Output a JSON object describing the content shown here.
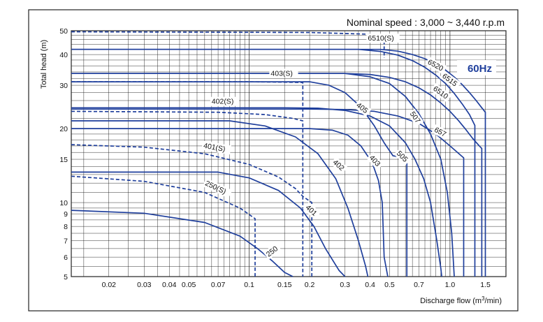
{
  "chart_data": {
    "type": "line",
    "title": "Nominal speed : 3,000 ~ 3,440 r.p.m",
    "badge": "60Hz",
    "xlabel_prefix": "Discharge flow (m",
    "xlabel_sup": "3",
    "xlabel_suffix": "/min)",
    "ylabel": "Total head (m)",
    "x_scale": "log",
    "y_scale": "log",
    "xlim": [
      0.013,
      1.9
    ],
    "ylim": [
      5,
      50
    ],
    "x_ticks": [
      0.02,
      0.03,
      0.04,
      0.05,
      0.07,
      0.1,
      0.15,
      0.2,
      0.3,
      0.4,
      0.5,
      0.7,
      1.0,
      1.5
    ],
    "x_tick_labels": [
      "0.02",
      "0.03",
      "0.04",
      "0.05",
      "0.07",
      "0.1",
      "0.15",
      "0.2",
      "0.3",
      "0.4",
      "0.5",
      "0.7",
      "1.0",
      "1.5"
    ],
    "y_ticks": [
      5,
      6,
      7,
      8,
      9,
      10,
      15,
      20,
      30,
      40,
      50
    ],
    "y_tick_labels": [
      "5",
      "6",
      "7",
      "8",
      "9",
      "10",
      "15",
      "20",
      "30",
      "40",
      "50"
    ],
    "grid": true,
    "series": [
      {
        "name": "250",
        "style": "solid",
        "x": [
          0.013,
          0.03,
          0.06,
          0.09,
          0.11,
          0.13,
          0.15,
          0.165
        ],
        "y": [
          9.3,
          9.05,
          8.3,
          7.3,
          6.5,
          5.8,
          5.2,
          5.0
        ],
        "label_at": [
          0.125,
          6.0
        ],
        "label_angle": -38
      },
      {
        "name": "250(S)",
        "style": "dashed",
        "x": [
          0.013,
          0.03,
          0.06,
          0.09,
          0.107,
          0.107
        ],
        "y": [
          12.8,
          12.2,
          11.0,
          9.5,
          8.6,
          5.0
        ],
        "label_at": [
          0.06,
          11.8
        ],
        "label_angle": 25
      },
      {
        "name": "401",
        "style": "solid",
        "x": [
          0.013,
          0.07,
          0.1,
          0.14,
          0.18,
          0.21,
          0.24,
          0.28,
          0.3
        ],
        "y": [
          13.3,
          13.3,
          12.6,
          11.2,
          9.5,
          8.0,
          6.5,
          5.3,
          5.0
        ],
        "label_at": [
          0.19,
          9.5
        ],
        "label_angle": 42
      },
      {
        "name": "401(S)",
        "style": "dashed",
        "x": [
          0.013,
          0.03,
          0.06,
          0.1,
          0.14,
          0.17,
          0.185,
          0.205,
          0.205
        ],
        "y": [
          17.2,
          16.8,
          15.8,
          14.3,
          12.7,
          11.4,
          10.6,
          10.0,
          5.0
        ],
        "label_at": [
          0.059,
          16.7
        ],
        "label_angle": 10
      },
      {
        "name": "402",
        "style": "solid",
        "x": [
          0.013,
          0.08,
          0.12,
          0.17,
          0.22,
          0.27,
          0.31,
          0.35,
          0.38,
          0.39
        ],
        "y": [
          21.5,
          21.5,
          20.5,
          18.5,
          15.8,
          12.5,
          9.5,
          7.0,
          5.5,
          5.0
        ],
        "label_at": [
          0.26,
          14.5
        ],
        "label_angle": 42
      },
      {
        "name": "402(S)",
        "style": "dashed",
        "x": [
          0.013,
          0.07,
          0.12,
          0.165,
          0.185,
          0.185
        ],
        "y": [
          23.5,
          23.3,
          22.8,
          22.0,
          21.5,
          5.0
        ],
        "label_at": [
          0.065,
          25.2
        ],
        "label_angle": 0
      },
      {
        "name": "403",
        "style": "solid",
        "x": [
          0.013,
          0.2,
          0.26,
          0.31,
          0.36,
          0.41,
          0.44,
          0.46,
          0.47,
          0.49
        ],
        "y": [
          20.0,
          20.0,
          19.7,
          18.8,
          17.0,
          14.5,
          12.3,
          10.0,
          6.0,
          5.0
        ],
        "label_at": [
          0.395,
          15.2
        ],
        "label_angle": 48
      },
      {
        "name": "403(S)",
        "style": "dashed",
        "x": [
          0.013,
          0.1,
          0.15,
          0.185,
          0.185
        ],
        "y": [
          31.0,
          31.0,
          30.9,
          30.8,
          22.0
        ],
        "label_at": [
          0.128,
          32.8
        ],
        "label_angle": 0
      },
      {
        "name": "405",
        "style": "solid",
        "x": [
          0.013,
          0.2,
          0.25,
          0.3,
          0.36,
          0.42,
          0.47,
          0.52,
          0.57,
          0.61,
          0.61
        ],
        "y": [
          31.0,
          31.0,
          30.0,
          28.0,
          24.5,
          20.5,
          17.5,
          15.5,
          15.3,
          15.2,
          5.0
        ],
        "label_at": [
          0.34,
          24.7
        ],
        "label_angle": 38
      },
      {
        "name": "505",
        "style": "solid",
        "x": [
          0.013,
          0.15,
          0.22,
          0.3,
          0.4,
          0.5,
          0.6,
          0.67,
          0.74,
          0.8,
          0.86,
          0.9,
          0.91
        ],
        "y": [
          24.3,
          24.3,
          24.2,
          23.7,
          22.5,
          20.5,
          17.5,
          15.0,
          12.5,
          10.0,
          7.0,
          5.4,
          5.0
        ],
        "label_at": [
          0.54,
          15.8
        ],
        "label_angle": 45
      },
      {
        "name": "507",
        "style": "solid",
        "x": [
          0.013,
          0.3,
          0.4,
          0.5,
          0.6,
          0.7,
          0.8,
          0.9,
          0.97,
          1.02,
          1.05
        ],
        "y": [
          33.5,
          33.5,
          32.5,
          30.5,
          27.0,
          23.0,
          19.0,
          15.0,
          11.0,
          7.5,
          5.0
        ],
        "label_at": [
          0.63,
          23.0
        ],
        "label_angle": 55
      },
      {
        "name": "657",
        "style": "solid",
        "x": [
          0.013,
          0.2,
          0.3,
          0.42,
          0.55,
          0.7,
          0.85,
          1.0,
          1.17,
          1.17
        ],
        "y": [
          24.0,
          24.0,
          23.9,
          23.5,
          22.5,
          21.0,
          19.0,
          17.0,
          15.2,
          5.0
        ],
        "label_at": [
          0.83,
          19.5
        ],
        "label_angle": 28
      },
      {
        "name": "6510",
        "style": "solid",
        "x": [
          0.013,
          0.3,
          0.4,
          0.5,
          0.6,
          0.7,
          0.8,
          0.9,
          1.0,
          1.1,
          1.2,
          1.3,
          1.4,
          1.44,
          1.44
        ],
        "y": [
          33.5,
          33.5,
          33.2,
          32.3,
          31.0,
          29.3,
          27.4,
          25.4,
          23.5,
          21.6,
          19.8,
          18.2,
          17.0,
          16.6,
          5.0
        ],
        "label_at": [
          0.82,
          28.8
        ],
        "label_angle": 36
      },
      {
        "name": "6510(S)",
        "style": "dashed",
        "x": [
          0.013,
          0.2,
          0.4,
          0.47,
          0.47
        ],
        "y": [
          49.5,
          49.2,
          48.4,
          48.0,
          38.8
        ],
        "label_at": [
          0.39,
          45.6
        ],
        "label_angle": 0
      },
      {
        "name": "6515",
        "style": "solid",
        "x": [
          0.013,
          0.35,
          0.45,
          0.55,
          0.65,
          0.75,
          0.85,
          0.95,
          1.05,
          1.15,
          1.25,
          1.3,
          1.33,
          1.33
        ],
        "y": [
          42.0,
          42.0,
          41.2,
          39.8,
          37.8,
          35.5,
          33.0,
          30.5,
          27.8,
          25.2,
          22.8,
          21.4,
          20.6,
          5.0
        ],
        "label_at": [
          0.91,
          32.4
        ],
        "label_angle": 36
      },
      {
        "name": "6520",
        "style": "solid",
        "x": [
          0.013,
          0.45,
          0.55,
          0.65,
          0.75,
          0.85,
          0.95,
          1.05,
          1.15,
          1.25,
          1.35,
          1.44,
          1.5,
          1.5
        ],
        "y": [
          42.0,
          42.0,
          41.3,
          40.0,
          38.5,
          36.6,
          34.6,
          32.4,
          30.2,
          28.0,
          26.0,
          24.3,
          23.3,
          5.0
        ],
        "label_at": [
          0.77,
          36.8
        ],
        "label_angle": 28
      }
    ]
  }
}
